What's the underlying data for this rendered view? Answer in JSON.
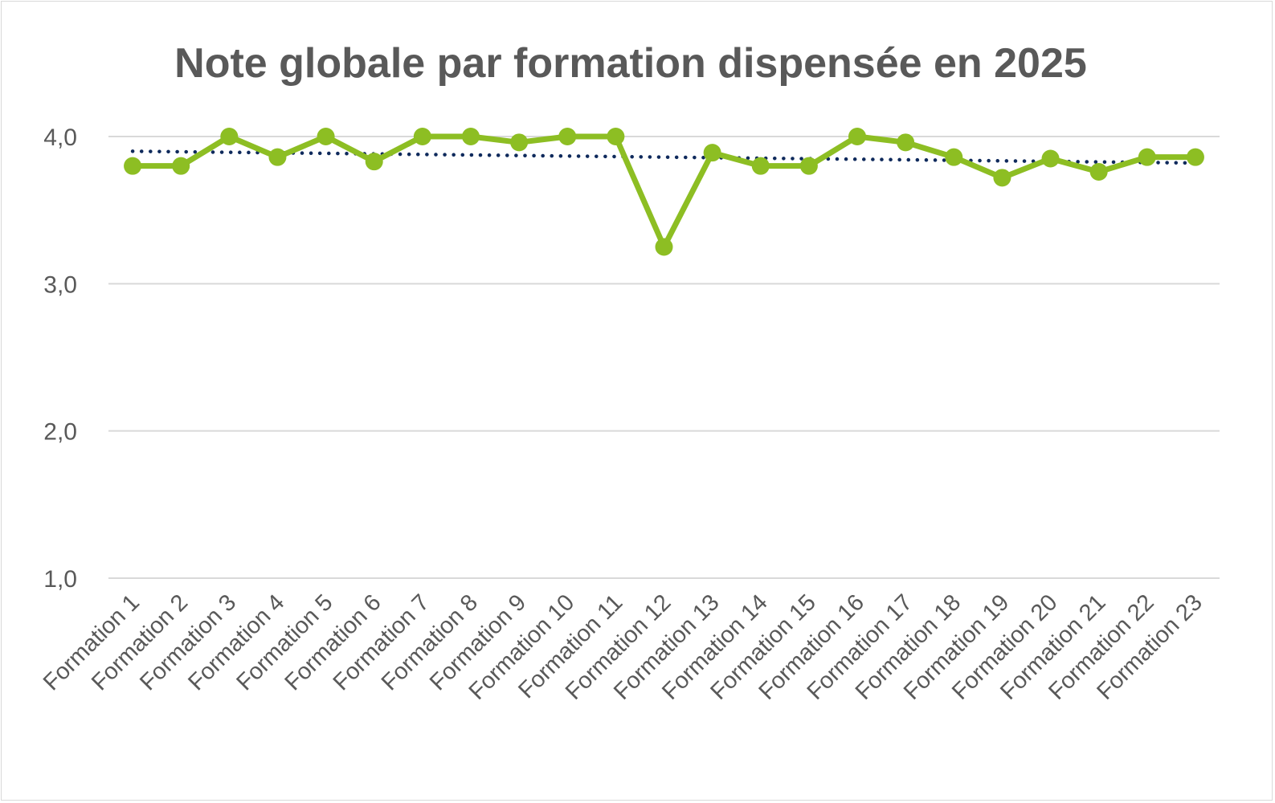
{
  "chart_data": {
    "type": "line",
    "title": "Note globale par formation dispensée en 2025",
    "categories": [
      "Formation 1",
      "Formation 2",
      "Formation 3",
      "Formation 4",
      "Formation 5",
      "Formation 6",
      "Formation 7",
      "Formation 8",
      "Formation 9",
      "Formation 10",
      "Formation 11",
      "Formation 12",
      "Formation 13",
      "Formation 14",
      "Formation 15",
      "Formation 16",
      "Formation 17",
      "Formation 18",
      "Formation 19",
      "Formation 20",
      "Formation 21",
      "Formation 22",
      "Formation 23"
    ],
    "series": [
      {
        "values": [
          3.8,
          3.8,
          4.0,
          3.86,
          4.0,
          3.83,
          4.0,
          4.0,
          3.96,
          4.0,
          4.0,
          3.25,
          3.89,
          3.8,
          3.8,
          4.0,
          3.96,
          3.86,
          3.72,
          3.85,
          3.76,
          3.86,
          3.86
        ],
        "color": "#8dbe23"
      }
    ],
    "trendline": {
      "type": "linear",
      "start": 3.9,
      "end": 3.82,
      "color": "#0f2a5c"
    },
    "yticks": [
      "1,0",
      "2,0",
      "3,0",
      "4,0"
    ],
    "ylim": [
      1.0,
      4.0
    ],
    "grid": true,
    "legend": "none"
  }
}
